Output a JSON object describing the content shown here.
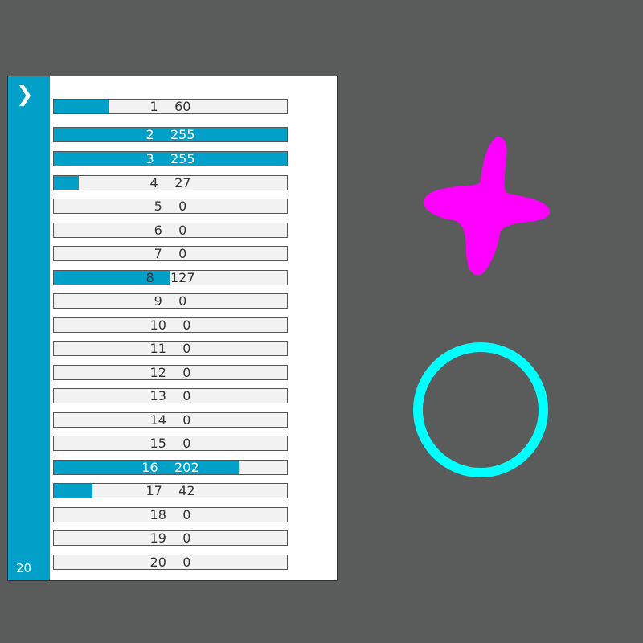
{
  "sidebar": {
    "expand_icon": "chevron-right-icon",
    "count": "20"
  },
  "accent": "#00a0c8",
  "channels": [
    {
      "index": "1",
      "value": 60
    },
    {
      "index": "2",
      "value": 255
    },
    {
      "index": "3",
      "value": 255
    },
    {
      "index": "4",
      "value": 27
    },
    {
      "index": "5",
      "value": 0
    },
    {
      "index": "6",
      "value": 0
    },
    {
      "index": "7",
      "value": 0
    },
    {
      "index": "8",
      "value": 127
    },
    {
      "index": "9",
      "value": 0
    },
    {
      "index": "10",
      "value": 0
    },
    {
      "index": "11",
      "value": 0
    },
    {
      "index": "12",
      "value": 0
    },
    {
      "index": "13",
      "value": 0
    },
    {
      "index": "14",
      "value": 0
    },
    {
      "index": "15",
      "value": 0
    },
    {
      "index": "16",
      "value": 202
    },
    {
      "index": "17",
      "value": 42
    },
    {
      "index": "18",
      "value": 0
    },
    {
      "index": "19",
      "value": 0
    },
    {
      "index": "20",
      "value": 0
    }
  ],
  "max_value": 255,
  "canvas": {
    "star_color": "#ff00ff",
    "ring_color": "#00ffff"
  }
}
